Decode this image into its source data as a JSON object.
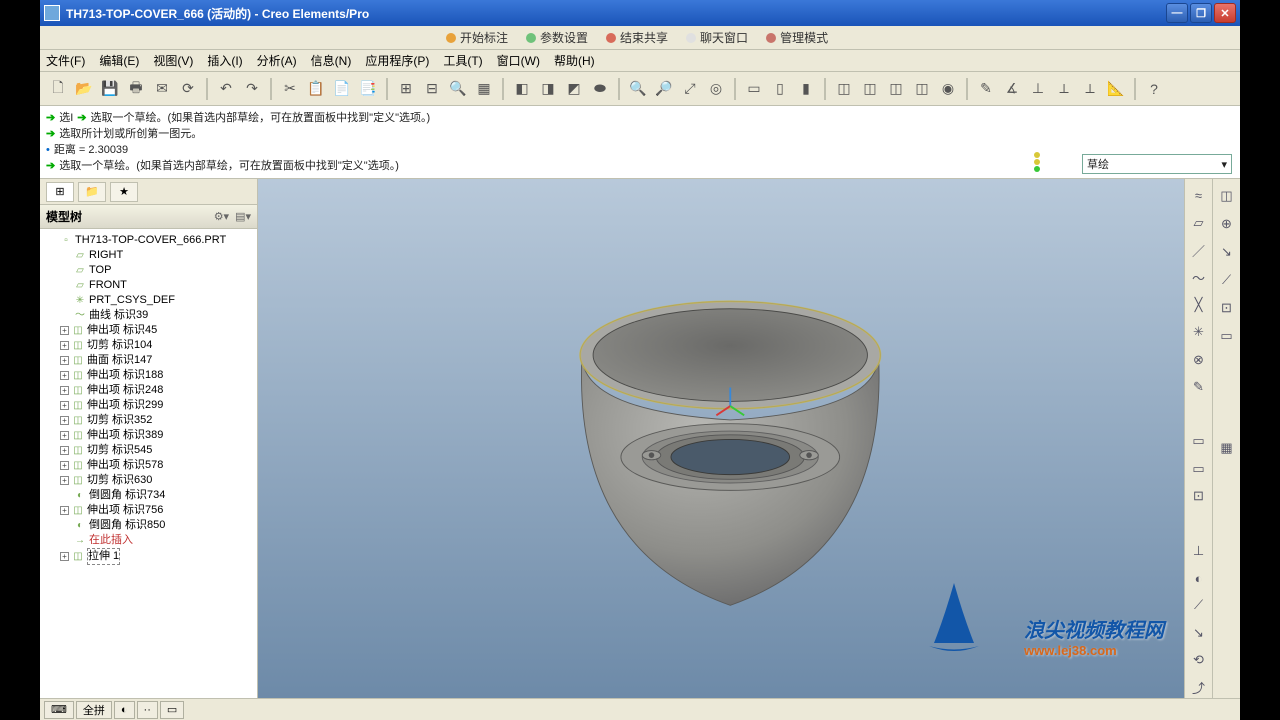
{
  "title": "TH713-TOP-COVER_666 (活动的) - Creo Elements/Pro",
  "tabs": [
    {
      "label": "开始标注",
      "color": "#e8a23a"
    },
    {
      "label": "参数设置",
      "color": "#6fc27a"
    },
    {
      "label": "结束共享",
      "color": "#d86b5a"
    },
    {
      "label": "聊天窗口",
      "color": "#e0e0e0"
    },
    {
      "label": "管理模式",
      "color": "#c9756b"
    }
  ],
  "menus": [
    "文件(F)",
    "编辑(E)",
    "视图(V)",
    "插入(I)",
    "分析(A)",
    "信息(N)",
    "应用程序(P)",
    "工具(T)",
    "窗口(W)",
    "帮助(H)"
  ],
  "messages": [
    {
      "prefix": "➔",
      "text1": "选I",
      "prefix2": "➔",
      "text2": "选取一个草绘。(如果首选内部草绘，可在放置面板中找到\"定义\"选项。)"
    },
    {
      "prefix": "➔",
      "text": "选取所计划或所创第一图元。"
    },
    {
      "prefix": "•",
      "text": "距离 = 2.30039"
    },
    {
      "prefix": "➔",
      "text": "选取一个草绘。(如果首选内部草绘，可在放置面板中找到\"定义\"选项。)"
    }
  ],
  "distance_value": "2.30039",
  "filter_label": "草绘",
  "panel_title": "模型树",
  "tree": [
    {
      "indent": 0,
      "ico": "▫",
      "label": "TH713-TOP-COVER_666.PRT",
      "exp": false
    },
    {
      "indent": 1,
      "ico": "▱",
      "label": "RIGHT",
      "exp": false
    },
    {
      "indent": 1,
      "ico": "▱",
      "label": "TOP",
      "exp": false
    },
    {
      "indent": 1,
      "ico": "▱",
      "label": "FRONT",
      "exp": false
    },
    {
      "indent": 1,
      "ico": "✳",
      "label": "PRT_CSYS_DEF",
      "exp": false
    },
    {
      "indent": 1,
      "ico": "～",
      "label": "曲线 标识39",
      "exp": false
    },
    {
      "indent": 1,
      "ico": "◫",
      "label": "伸出项 标识45",
      "exp": true
    },
    {
      "indent": 1,
      "ico": "◫",
      "label": "切剪 标识104",
      "exp": true
    },
    {
      "indent": 1,
      "ico": "◫",
      "label": "曲面 标识147",
      "exp": true
    },
    {
      "indent": 1,
      "ico": "◫",
      "label": "伸出项 标识188",
      "exp": true
    },
    {
      "indent": 1,
      "ico": "◫",
      "label": "伸出项 标识248",
      "exp": true
    },
    {
      "indent": 1,
      "ico": "◫",
      "label": "伸出项 标识299",
      "exp": true
    },
    {
      "indent": 1,
      "ico": "◫",
      "label": "切剪 标识352",
      "exp": true
    },
    {
      "indent": 1,
      "ico": "◫",
      "label": "伸出项 标识389",
      "exp": true
    },
    {
      "indent": 1,
      "ico": "◫",
      "label": "切剪 标识545",
      "exp": true
    },
    {
      "indent": 1,
      "ico": "◫",
      "label": "伸出项 标识578",
      "exp": true
    },
    {
      "indent": 1,
      "ico": "◫",
      "label": "切剪 标识630",
      "exp": true
    },
    {
      "indent": 1,
      "ico": "◐",
      "label": "倒圆角 标识734",
      "exp": false
    },
    {
      "indent": 1,
      "ico": "◫",
      "label": "伸出项 标识756",
      "exp": true
    },
    {
      "indent": 1,
      "ico": "◐",
      "label": "倒圆角 标识850",
      "exp": false
    },
    {
      "indent": 1,
      "ico": "→",
      "label": "在此插入",
      "exp": false,
      "red": true
    },
    {
      "indent": 1,
      "ico": "◫",
      "label": "拉伸 1",
      "exp": true,
      "dash": true
    }
  ],
  "status_buttons": [
    "全拼",
    "◐",
    "··",
    "▭"
  ],
  "watermark": {
    "main": "浪尖视频教程网",
    "sub": "www.lej38.com"
  },
  "viewport": {
    "gradient_top": "#b8c9da",
    "gradient_bottom": "#6d8aa8",
    "model_fill": "#9a9a98",
    "model_stroke": "#5a5a58",
    "highlight": "#c9c074",
    "axis": {
      "x": "#d83838",
      "y": "#38c838",
      "z": "#3888d8",
      "origin": [
        625,
        248
      ]
    }
  }
}
